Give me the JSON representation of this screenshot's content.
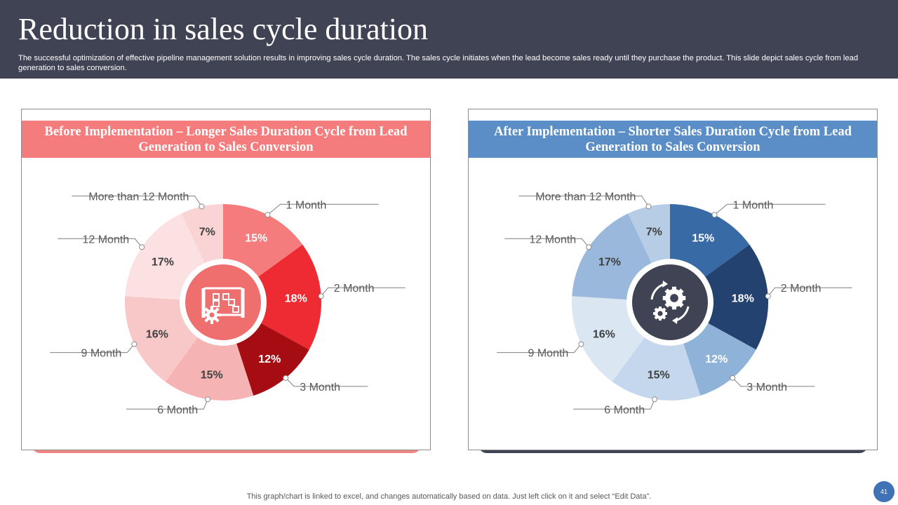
{
  "header": {
    "title": "Reduction in sales cycle duration",
    "subtitle": "The successful optimization of effective pipeline management solution results in improving sales cycle duration. The sales cycle initiates when the lead become sales ready until they purchase the product. This slide depict sales cycle from lead generation to sales conversion."
  },
  "footer": {
    "note": "This graph/chart is linked to excel,  and changes automatically based on data. Just left click on it and select “Edit Data”.",
    "page_number": "41"
  },
  "chart_data": [
    {
      "type": "pie",
      "title": "Before Implementation – Longer Sales Duration Cycle from Lead Generation to Sales Conversion",
      "center_icon": "blueprint-gear-icon",
      "accent": "#f47c7c",
      "center_color": "#ef6f6f",
      "categories": [
        "1 Month",
        "2 Month",
        "3 Month",
        "6 Month",
        "9 Month",
        "12 Month",
        "More than 12 Month"
      ],
      "values": [
        15,
        18,
        12,
        15,
        16,
        17,
        7
      ],
      "value_labels": [
        "15%",
        "18%",
        "12%",
        "15%",
        "16%",
        "17%",
        "7%"
      ],
      "colors": [
        "#f47c7c",
        "#ee2b33",
        "#a60d12",
        "#f6b3b3",
        "#f8c8c8",
        "#fbe1e1",
        "#fad4d4"
      ],
      "label_colors": [
        "#ffffff",
        "#ffffff",
        "#ffffff",
        "#404040",
        "#404040",
        "#404040",
        "#404040"
      ]
    },
    {
      "type": "pie",
      "title": "After Implementation – Shorter Sales Duration Cycle from Lead Generation to Sales Conversion",
      "center_icon": "gears-icon",
      "accent": "#5b8ec6",
      "center_color": "#404354",
      "categories": [
        "1 Month",
        "2 Month",
        "3 Month",
        "6 Month",
        "9 Month",
        "12 Month",
        "More than 12 Month"
      ],
      "values": [
        15,
        18,
        12,
        15,
        16,
        17,
        7
      ],
      "value_labels": [
        "15%",
        "18%",
        "12%",
        "15%",
        "16%",
        "17%",
        "7%"
      ],
      "colors": [
        "#386ba6",
        "#244270",
        "#8fb2d9",
        "#c5d7ec",
        "#dbe6f3",
        "#9ab8dc",
        "#b7cde6"
      ],
      "label_colors": [
        "#ffffff",
        "#ffffff",
        "#ffffff",
        "#404040",
        "#404040",
        "#404040",
        "#404040"
      ]
    }
  ]
}
